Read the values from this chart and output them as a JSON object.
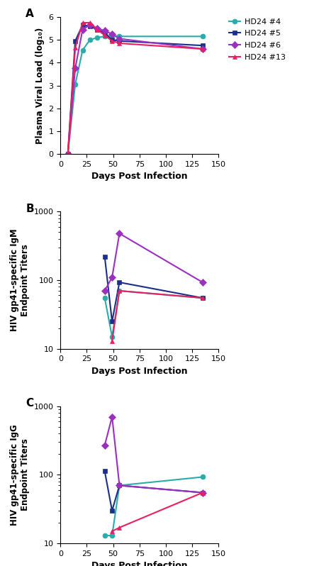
{
  "panel_A": {
    "label": "A",
    "series": {
      "HD24 #4": {
        "x": [
          7,
          14,
          21,
          28,
          35,
          42,
          49,
          56,
          135
        ],
        "y": [
          0,
          3.05,
          4.55,
          5.0,
          5.1,
          5.15,
          5.2,
          5.15,
          5.15
        ],
        "color": "#2AACAA",
        "marker": "o"
      },
      "HD24 #5": {
        "x": [
          7,
          14,
          21,
          28,
          35,
          42,
          49,
          56,
          135
        ],
        "y": [
          0,
          4.95,
          5.65,
          5.6,
          5.45,
          5.3,
          5.0,
          4.95,
          4.75
        ],
        "color": "#1A2F8A",
        "marker": "s"
      },
      "HD24 #6": {
        "x": [
          7,
          14,
          21,
          28,
          35,
          42,
          49,
          56,
          135
        ],
        "y": [
          0,
          3.75,
          5.45,
          5.65,
          5.5,
          5.4,
          5.25,
          5.05,
          4.6
        ],
        "color": "#9B30C0",
        "marker": "D"
      },
      "HD24 #13": {
        "x": [
          7,
          14,
          21,
          28,
          35,
          42,
          49,
          56,
          135
        ],
        "y": [
          0,
          4.65,
          5.75,
          5.75,
          5.45,
          5.2,
          4.95,
          4.85,
          4.6
        ],
        "color": "#E82060",
        "marker": "^"
      }
    },
    "ylabel": "Plasma Viral Load (log₁₀)",
    "xlabel": "Days Post Infection",
    "ylim": [
      0,
      6
    ],
    "yticks": [
      0,
      1,
      2,
      3,
      4,
      5,
      6
    ],
    "xlim": [
      0,
      150
    ],
    "xticks": [
      0,
      25,
      50,
      75,
      100,
      125,
      150
    ]
  },
  "panel_B": {
    "label": "B",
    "series": {
      "HD24 #4": {
        "x": [
          42,
          49,
          56,
          135
        ],
        "y": [
          55,
          15,
          70,
          55
        ],
        "color": "#2AACAA",
        "marker": "o"
      },
      "HD24 #5": {
        "x": [
          42,
          49,
          56,
          135
        ],
        "y": [
          220,
          25,
          93,
          55
        ],
        "color": "#1A2F8A",
        "marker": "s"
      },
      "HD24 #6": {
        "x": [
          42,
          49,
          56,
          135
        ],
        "y": [
          70,
          110,
          480,
          93
        ],
        "color": "#9B30C0",
        "marker": "D"
      },
      "HD24 #13": {
        "x": [
          49,
          56,
          135
        ],
        "y": [
          13,
          70,
          55
        ],
        "color": "#E82060",
        "marker": "^"
      }
    },
    "ylabel": "HIV gp41-specific IgM\nEndpoint Titers",
    "xlabel": "Days Post Infection",
    "ylim": [
      10,
      1000
    ],
    "xlim": [
      0,
      150
    ],
    "xticks": [
      0,
      25,
      50,
      75,
      100,
      125,
      150
    ]
  },
  "panel_C": {
    "label": "C",
    "series": {
      "HD24 #4": {
        "x": [
          42,
          49,
          56,
          135
        ],
        "y": [
          13,
          13,
          70,
          93
        ],
        "color": "#2AACAA",
        "marker": "o"
      },
      "HD24 #5": {
        "x": [
          42,
          49,
          56,
          135
        ],
        "y": [
          113,
          30,
          70,
          55
        ],
        "color": "#1A2F8A",
        "marker": "s"
      },
      "HD24 #6": {
        "x": [
          42,
          49,
          56,
          135
        ],
        "y": [
          270,
          700,
          70,
          55
        ],
        "color": "#9B30C0",
        "marker": "D"
      },
      "HD24 #13": {
        "x": [
          49,
          56,
          135
        ],
        "y": [
          15,
          17,
          55
        ],
        "color": "#E82060",
        "marker": "^"
      }
    },
    "ylabel": "HIV gp41-specific IgG\nEndpoint Titers",
    "xlabel": "Days Post Infection",
    "ylim": [
      10,
      1000
    ],
    "xlim": [
      0,
      150
    ],
    "xticks": [
      0,
      25,
      50,
      75,
      100,
      125,
      150
    ]
  },
  "legend_labels": [
    "HD24 #4",
    "HD24 #5",
    "HD24 #6",
    "HD24 #13"
  ],
  "legend_colors": [
    "#2AACAA",
    "#1A2F8A",
    "#9B30C0",
    "#E82060"
  ],
  "legend_markers": [
    "o",
    "s",
    "D",
    "^"
  ]
}
